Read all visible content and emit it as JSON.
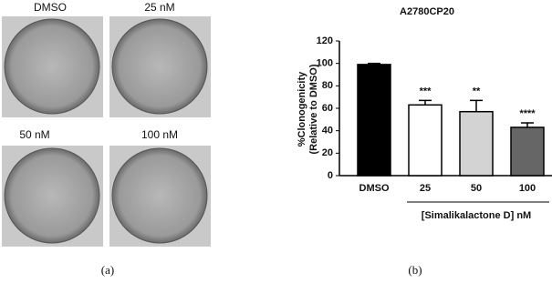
{
  "figure": {
    "image_labels": [
      "DMSO",
      "25  nM",
      "50 nM",
      "100  nM"
    ],
    "captions": [
      "(a)",
      "(b)"
    ]
  },
  "chart_data": {
    "type": "bar",
    "title": "A2780CP20",
    "y_label": [
      "%Clonogenicity",
      "(Relative to DMSO)"
    ],
    "x_label": "[Simalikalactone D] nM",
    "categories": [
      "DMSO",
      "25",
      "50",
      "100"
    ],
    "values": [
      99,
      63,
      57,
      43
    ],
    "errors": [
      1,
      4,
      10,
      4
    ],
    "significance": [
      null,
      "***",
      "**",
      "****"
    ],
    "colors": [
      "#000000",
      "#ffffff",
      "#d3d3d3",
      "#666666"
    ],
    "ylim": [
      0,
      120
    ],
    "yticks": [
      0,
      20,
      40,
      60,
      80,
      100,
      120
    ]
  }
}
